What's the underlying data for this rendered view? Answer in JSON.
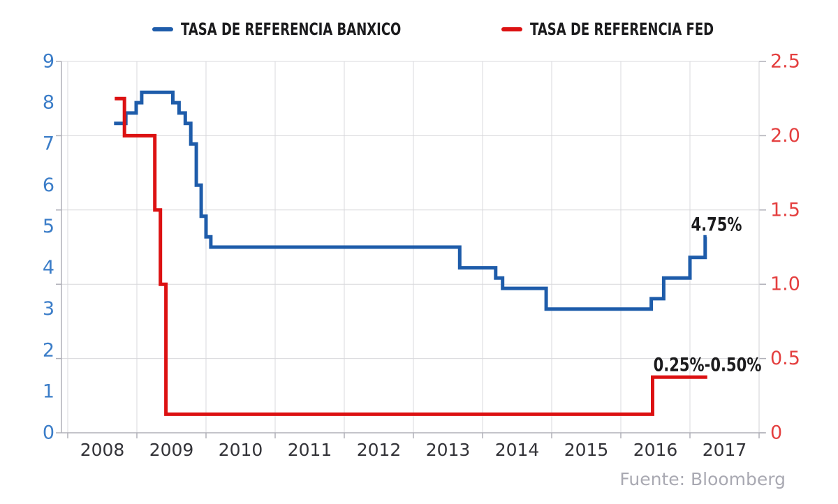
{
  "legend": {
    "banxico": "TASA DE REFERENCIA BANXICO",
    "fed": "TASA DE REFERENCIA FED"
  },
  "annotations": {
    "banxico_last": "4.75%",
    "fed_last": "0.25%-0.50%"
  },
  "source": "Fuente: Bloomberg",
  "colors": {
    "banxico_line": "#1e5caa",
    "fed_line": "#dc1112",
    "left_axis_labels": "#3b7dc8",
    "right_axis_labels": "#e43f3f",
    "x_axis_labels": "#333338",
    "grid": "#d8d8dc",
    "axis": "#b0b0b8",
    "annotation_text": "#1b1b1d",
    "source_text": "#a9a9b2"
  },
  "chart_data": {
    "type": "line",
    "line_style": "step-after",
    "title": "",
    "grid": true,
    "legend_position": "top",
    "x_axis": {
      "range": [
        2008,
        2018
      ],
      "tick_interval": 1,
      "labels": [
        "2008",
        "2009",
        "2010",
        "2011",
        "2012",
        "2013",
        "2014",
        "2015",
        "2016",
        "2017"
      ]
    },
    "left_y_axis": {
      "title": "",
      "range": [
        0,
        9
      ],
      "tick_labels": [
        "0",
        "1",
        "2",
        "3",
        "4",
        "5",
        "6",
        "7",
        "8",
        "9"
      ],
      "series": "TASA DE REFERENCIA BANXICO"
    },
    "right_y_axis": {
      "title": "",
      "range": [
        0,
        2.5
      ],
      "tick_labels": [
        "0",
        "0.5",
        "1.0",
        "1.5",
        "2.0",
        "2.5"
      ],
      "gridline_values": [
        0,
        0.5,
        1.0,
        1.5,
        2.0,
        2.5
      ],
      "series": "TASA DE REFERENCIA FED"
    },
    "series": [
      {
        "name": "TASA DE REFERENCIA BANXICO",
        "axis": "left",
        "color": "#1e5caa",
        "points": [
          [
            2008.67,
            7.5
          ],
          [
            2008.84,
            7.75
          ],
          [
            2008.99,
            8.0
          ],
          [
            2009.07,
            8.25
          ],
          [
            2009.52,
            8.0
          ],
          [
            2009.61,
            7.75
          ],
          [
            2009.7,
            7.5
          ],
          [
            2009.78,
            7.0
          ],
          [
            2009.86,
            6.0
          ],
          [
            2009.93,
            5.25
          ],
          [
            2010.0,
            4.75
          ],
          [
            2010.07,
            4.5
          ],
          [
            2013.67,
            4.0
          ],
          [
            2014.19,
            3.75
          ],
          [
            2014.29,
            3.5
          ],
          [
            2014.92,
            3.0
          ],
          [
            2016.44,
            3.25
          ],
          [
            2016.62,
            3.75
          ],
          [
            2017.0,
            4.25
          ],
          [
            2017.22,
            4.75
          ]
        ],
        "end_x": 2017.24,
        "last_value_label": "4.75%"
      },
      {
        "name": "TASA DE REFERENCIA FED",
        "axis": "right",
        "color": "#dc1112",
        "points": [
          [
            2008.68,
            2.25
          ],
          [
            2008.82,
            2.0
          ],
          [
            2009.26,
            1.5
          ],
          [
            2009.34,
            1.0
          ],
          [
            2009.42,
            0.125
          ],
          [
            2016.46,
            0.375
          ]
        ],
        "end_x": 2017.25,
        "last_value_label": "0.25%-0.50%"
      }
    ]
  }
}
